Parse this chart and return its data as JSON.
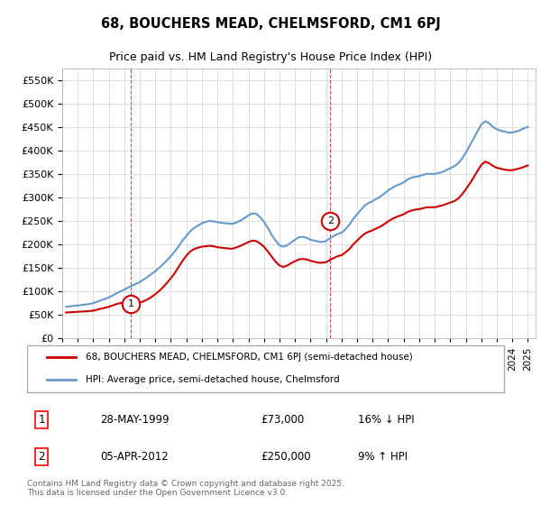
{
  "title": "68, BOUCHERS MEAD, CHELMSFORD, CM1 6PJ",
  "subtitle": "Price paid vs. HM Land Registry's House Price Index (HPI)",
  "legend_line1": "68, BOUCHERS MEAD, CHELMSFORD, CM1 6PJ (semi-detached house)",
  "legend_line2": "HPI: Average price, semi-detached house, Chelmsford",
  "footer": "Contains HM Land Registry data © Crown copyright and database right 2025.\nThis data is licensed under the Open Government Licence v3.0.",
  "price_color": "#cc0000",
  "hpi_color": "#6699cc",
  "marker1_date": "28-MAY-1999",
  "marker1_price": 73000,
  "marker1_label": "16% ↓ HPI",
  "marker2_date": "05-APR-2012",
  "marker2_price": 250000,
  "marker2_label": "9% ↑ HPI",
  "ylim": [
    0,
    575000
  ],
  "yticks": [
    0,
    50000,
    100000,
    150000,
    200000,
    250000,
    300000,
    350000,
    400000,
    450000,
    500000,
    550000
  ],
  "background_color": "#ffffff",
  "grid_color": "#dddddd",
  "hpi_x": [
    1995.25,
    1995.5,
    1995.75,
    1996.0,
    1996.25,
    1996.5,
    1996.75,
    1997.0,
    1997.25,
    1997.5,
    1997.75,
    1998.0,
    1998.25,
    1998.5,
    1998.75,
    1999.0,
    1999.25,
    1999.5,
    1999.75,
    2000.0,
    2000.25,
    2000.5,
    2000.75,
    2001.0,
    2001.25,
    2001.5,
    2001.75,
    2002.0,
    2002.25,
    2002.5,
    2002.75,
    2003.0,
    2003.25,
    2003.5,
    2003.75,
    2004.0,
    2004.25,
    2004.5,
    2004.75,
    2005.0,
    2005.25,
    2005.5,
    2005.75,
    2006.0,
    2006.25,
    2006.5,
    2006.75,
    2007.0,
    2007.25,
    2007.5,
    2007.75,
    2008.0,
    2008.25,
    2008.5,
    2008.75,
    2009.0,
    2009.25,
    2009.5,
    2009.75,
    2010.0,
    2010.25,
    2010.5,
    2010.75,
    2011.0,
    2011.25,
    2011.5,
    2011.75,
    2012.0,
    2012.25,
    2012.5,
    2012.75,
    2013.0,
    2013.25,
    2013.5,
    2013.75,
    2014.0,
    2014.25,
    2014.5,
    2014.75,
    2015.0,
    2015.25,
    2015.5,
    2015.75,
    2016.0,
    2016.25,
    2016.5,
    2016.75,
    2017.0,
    2017.25,
    2017.5,
    2017.75,
    2018.0,
    2018.25,
    2018.5,
    2018.75,
    2019.0,
    2019.25,
    2019.5,
    2019.75,
    2020.0,
    2020.25,
    2020.5,
    2020.75,
    2021.0,
    2021.25,
    2021.5,
    2021.75,
    2022.0,
    2022.25,
    2022.5,
    2022.75,
    2023.0,
    2023.25,
    2023.5,
    2023.75,
    2024.0,
    2024.25,
    2024.5,
    2024.75,
    2025.0
  ],
  "hpi_y": [
    67000,
    68000,
    69000,
    70000,
    71000,
    72000,
    73000,
    75000,
    78000,
    81000,
    84000,
    87000,
    91000,
    96000,
    100000,
    104000,
    108000,
    112000,
    116000,
    120000,
    125000,
    131000,
    137000,
    143000,
    150000,
    158000,
    166000,
    175000,
    185000,
    196000,
    208000,
    218000,
    228000,
    235000,
    240000,
    245000,
    248000,
    250000,
    249000,
    247000,
    246000,
    245000,
    244000,
    244000,
    247000,
    251000,
    256000,
    262000,
    266000,
    265000,
    258000,
    248000,
    235000,
    220000,
    208000,
    198000,
    195000,
    198000,
    204000,
    210000,
    215000,
    216000,
    214000,
    210000,
    208000,
    206000,
    205000,
    207000,
    213000,
    218000,
    222000,
    225000,
    232000,
    242000,
    254000,
    264000,
    274000,
    283000,
    288000,
    292000,
    297000,
    302000,
    308000,
    315000,
    320000,
    325000,
    328000,
    332000,
    338000,
    342000,
    344000,
    345000,
    348000,
    350000,
    350000,
    350000,
    352000,
    354000,
    358000,
    362000,
    366000,
    372000,
    382000,
    395000,
    410000,
    425000,
    440000,
    455000,
    462000,
    458000,
    450000,
    445000,
    442000,
    440000,
    438000,
    438000,
    440000,
    443000,
    447000,
    450000
  ],
  "price_x": [
    1995.25,
    1995.5,
    1995.75,
    1996.0,
    1996.25,
    1996.5,
    1996.75,
    1997.0,
    1997.25,
    1997.5,
    1997.75,
    1998.0,
    1998.25,
    1998.5,
    1998.75,
    1999.0,
    1999.25,
    1999.5,
    1999.75,
    2000.0,
    2000.25,
    2000.5,
    2000.75,
    2001.0,
    2001.25,
    2001.5,
    2001.75,
    2002.0,
    2002.25,
    2002.5,
    2002.75,
    2003.0,
    2003.25,
    2003.5,
    2003.75,
    2004.0,
    2004.25,
    2004.5,
    2004.75,
    2005.0,
    2005.25,
    2005.5,
    2005.75,
    2006.0,
    2006.25,
    2006.5,
    2006.75,
    2007.0,
    2007.25,
    2007.5,
    2007.75,
    2008.0,
    2008.25,
    2008.5,
    2008.75,
    2009.0,
    2009.25,
    2009.5,
    2009.75,
    2010.0,
    2010.25,
    2010.5,
    2010.75,
    2011.0,
    2011.25,
    2011.5,
    2011.75,
    2012.0,
    2012.25,
    2012.5,
    2012.75,
    2013.0,
    2013.25,
    2013.5,
    2013.75,
    2014.0,
    2014.25,
    2014.5,
    2014.75,
    2015.0,
    2015.25,
    2015.5,
    2015.75,
    2016.0,
    2016.25,
    2016.5,
    2016.75,
    2017.0,
    2017.25,
    2017.5,
    2017.75,
    2018.0,
    2018.25,
    2018.5,
    2018.75,
    2019.0,
    2019.25,
    2019.5,
    2019.75,
    2020.0,
    2020.25,
    2020.5,
    2020.75,
    2021.0,
    2021.25,
    2021.5,
    2021.75,
    2022.0,
    2022.25,
    2022.5,
    2022.75,
    2023.0,
    2023.25,
    2023.5,
    2023.75,
    2024.0,
    2024.25,
    2024.5,
    2024.75,
    2025.0
  ],
  "price_y": [
    55000,
    55500,
    56000,
    56500,
    57000,
    57500,
    58000,
    59000,
    61000,
    63000,
    65000,
    67000,
    70000,
    73000,
    75000,
    76000,
    74000,
    73500,
    74000,
    76000,
    79000,
    83000,
    88000,
    94000,
    101000,
    109000,
    118000,
    128000,
    139000,
    152000,
    165000,
    176000,
    185000,
    190000,
    193000,
    195000,
    196000,
    197000,
    196000,
    194000,
    193000,
    192000,
    191000,
    191000,
    194000,
    197000,
    201000,
    205000,
    208000,
    207000,
    202000,
    195000,
    185000,
    174000,
    163000,
    155000,
    152000,
    155000,
    160000,
    164000,
    168000,
    169000,
    168000,
    165000,
    163000,
    161000,
    161000,
    162000,
    167000,
    171000,
    175000,
    177000,
    183000,
    190000,
    200000,
    208000,
    216000,
    223000,
    227000,
    230000,
    234000,
    238000,
    243000,
    249000,
    254000,
    258000,
    261000,
    264000,
    269000,
    272000,
    274000,
    275000,
    277000,
    279000,
    279000,
    279000,
    281000,
    283000,
    286000,
    289000,
    292000,
    297000,
    306000,
    317000,
    329000,
    342000,
    356000,
    369000,
    376000,
    373000,
    367000,
    363000,
    361000,
    359000,
    358000,
    358000,
    360000,
    362000,
    365000,
    368000
  ],
  "marker1_x": 1999.42,
  "marker2_x": 2012.27,
  "vline1_x": 1999.42,
  "vline2_x": 2012.27,
  "xtick_years": [
    1995,
    1996,
    1997,
    1998,
    1999,
    2000,
    2001,
    2002,
    2003,
    2004,
    2005,
    2006,
    2007,
    2008,
    2009,
    2010,
    2011,
    2012,
    2013,
    2014,
    2015,
    2016,
    2017,
    2018,
    2019,
    2020,
    2021,
    2022,
    2023,
    2024,
    2025
  ]
}
